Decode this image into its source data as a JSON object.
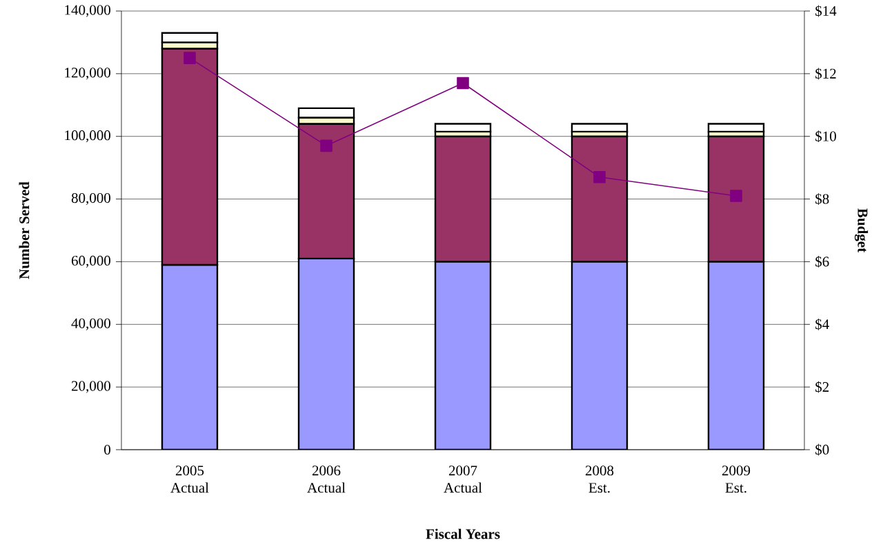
{
  "chart_data": {
    "type": "bar",
    "stacked": true,
    "xlabel": "Fiscal Years",
    "ylabel": "Number Served",
    "y2label": "Budget",
    "categories": [
      "2005 Actual",
      "2006 Actual",
      "2007 Actual",
      "2008 Est.",
      "2009 Est."
    ],
    "series": [
      {
        "color": "#9999ff",
        "values": [
          59000,
          61000,
          60000,
          60000,
          60000
        ]
      },
      {
        "color": "#993366",
        "values": [
          69000,
          43000,
          40000,
          40000,
          40000
        ]
      },
      {
        "color": "#ffffcc",
        "values": [
          2000,
          2000,
          1500,
          1500,
          1500
        ]
      },
      {
        "color": "#ffffff",
        "values": [
          3000,
          3000,
          2500,
          2500,
          2500
        ]
      },
      {
        "type": "line",
        "axis": "y2",
        "color": "#800080",
        "marker": "square",
        "values": [
          12.5,
          9.7,
          11.7,
          8.7,
          8.1
        ]
      }
    ],
    "ylim": [
      0,
      140000
    ],
    "yticks": [
      {
        "value": 0,
        "label": "0"
      },
      {
        "value": 20000,
        "label": "20,000"
      },
      {
        "value": 40000,
        "label": "40,000"
      },
      {
        "value": 60000,
        "label": "60,000"
      },
      {
        "value": 80000,
        "label": "80,000"
      },
      {
        "value": 100000,
        "label": "100,000"
      },
      {
        "value": 120000,
        "label": "120,000"
      },
      {
        "value": 140000,
        "label": "140,000"
      }
    ],
    "y2lim": [
      0,
      14
    ],
    "y2ticks": [
      {
        "value": 0,
        "label": "$0"
      },
      {
        "value": 2,
        "label": "$2"
      },
      {
        "value": 4,
        "label": "$4"
      },
      {
        "value": 6,
        "label": "$6"
      },
      {
        "value": 8,
        "label": "$8"
      },
      {
        "value": 10,
        "label": "$10"
      },
      {
        "value": 12,
        "label": "$12"
      },
      {
        "value": 14,
        "label": "$14"
      }
    ],
    "grid": "y"
  }
}
